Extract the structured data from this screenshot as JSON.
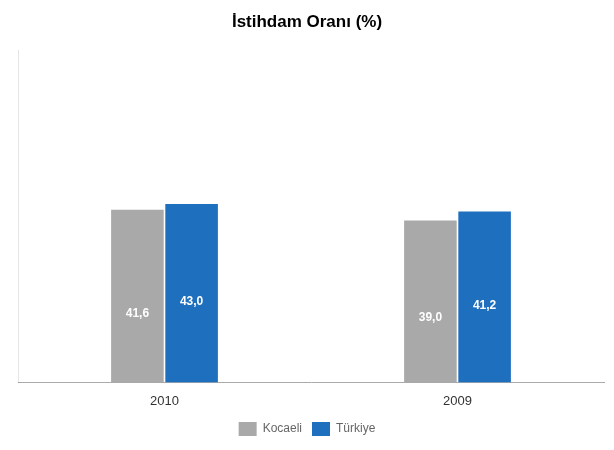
{
  "chart_data": {
    "type": "bar",
    "title": "İstihdam Oranı (%)",
    "categories": [
      "2010",
      "2009"
    ],
    "series": [
      {
        "name": "Kocaeli",
        "color": "#A9A9A9",
        "values": [
          41.6,
          39.0
        ],
        "value_labels": [
          "41,6",
          "39,0"
        ]
      },
      {
        "name": "Türkiye",
        "color": "#1F6FBF",
        "values": [
          43.0,
          41.2
        ],
        "value_labels": [
          "43,0",
          "41,2"
        ]
      }
    ],
    "ylim": [
      0,
      80
    ],
    "grid": false,
    "legend": "bottom",
    "data_labels": true,
    "tick_labels": "x"
  }
}
